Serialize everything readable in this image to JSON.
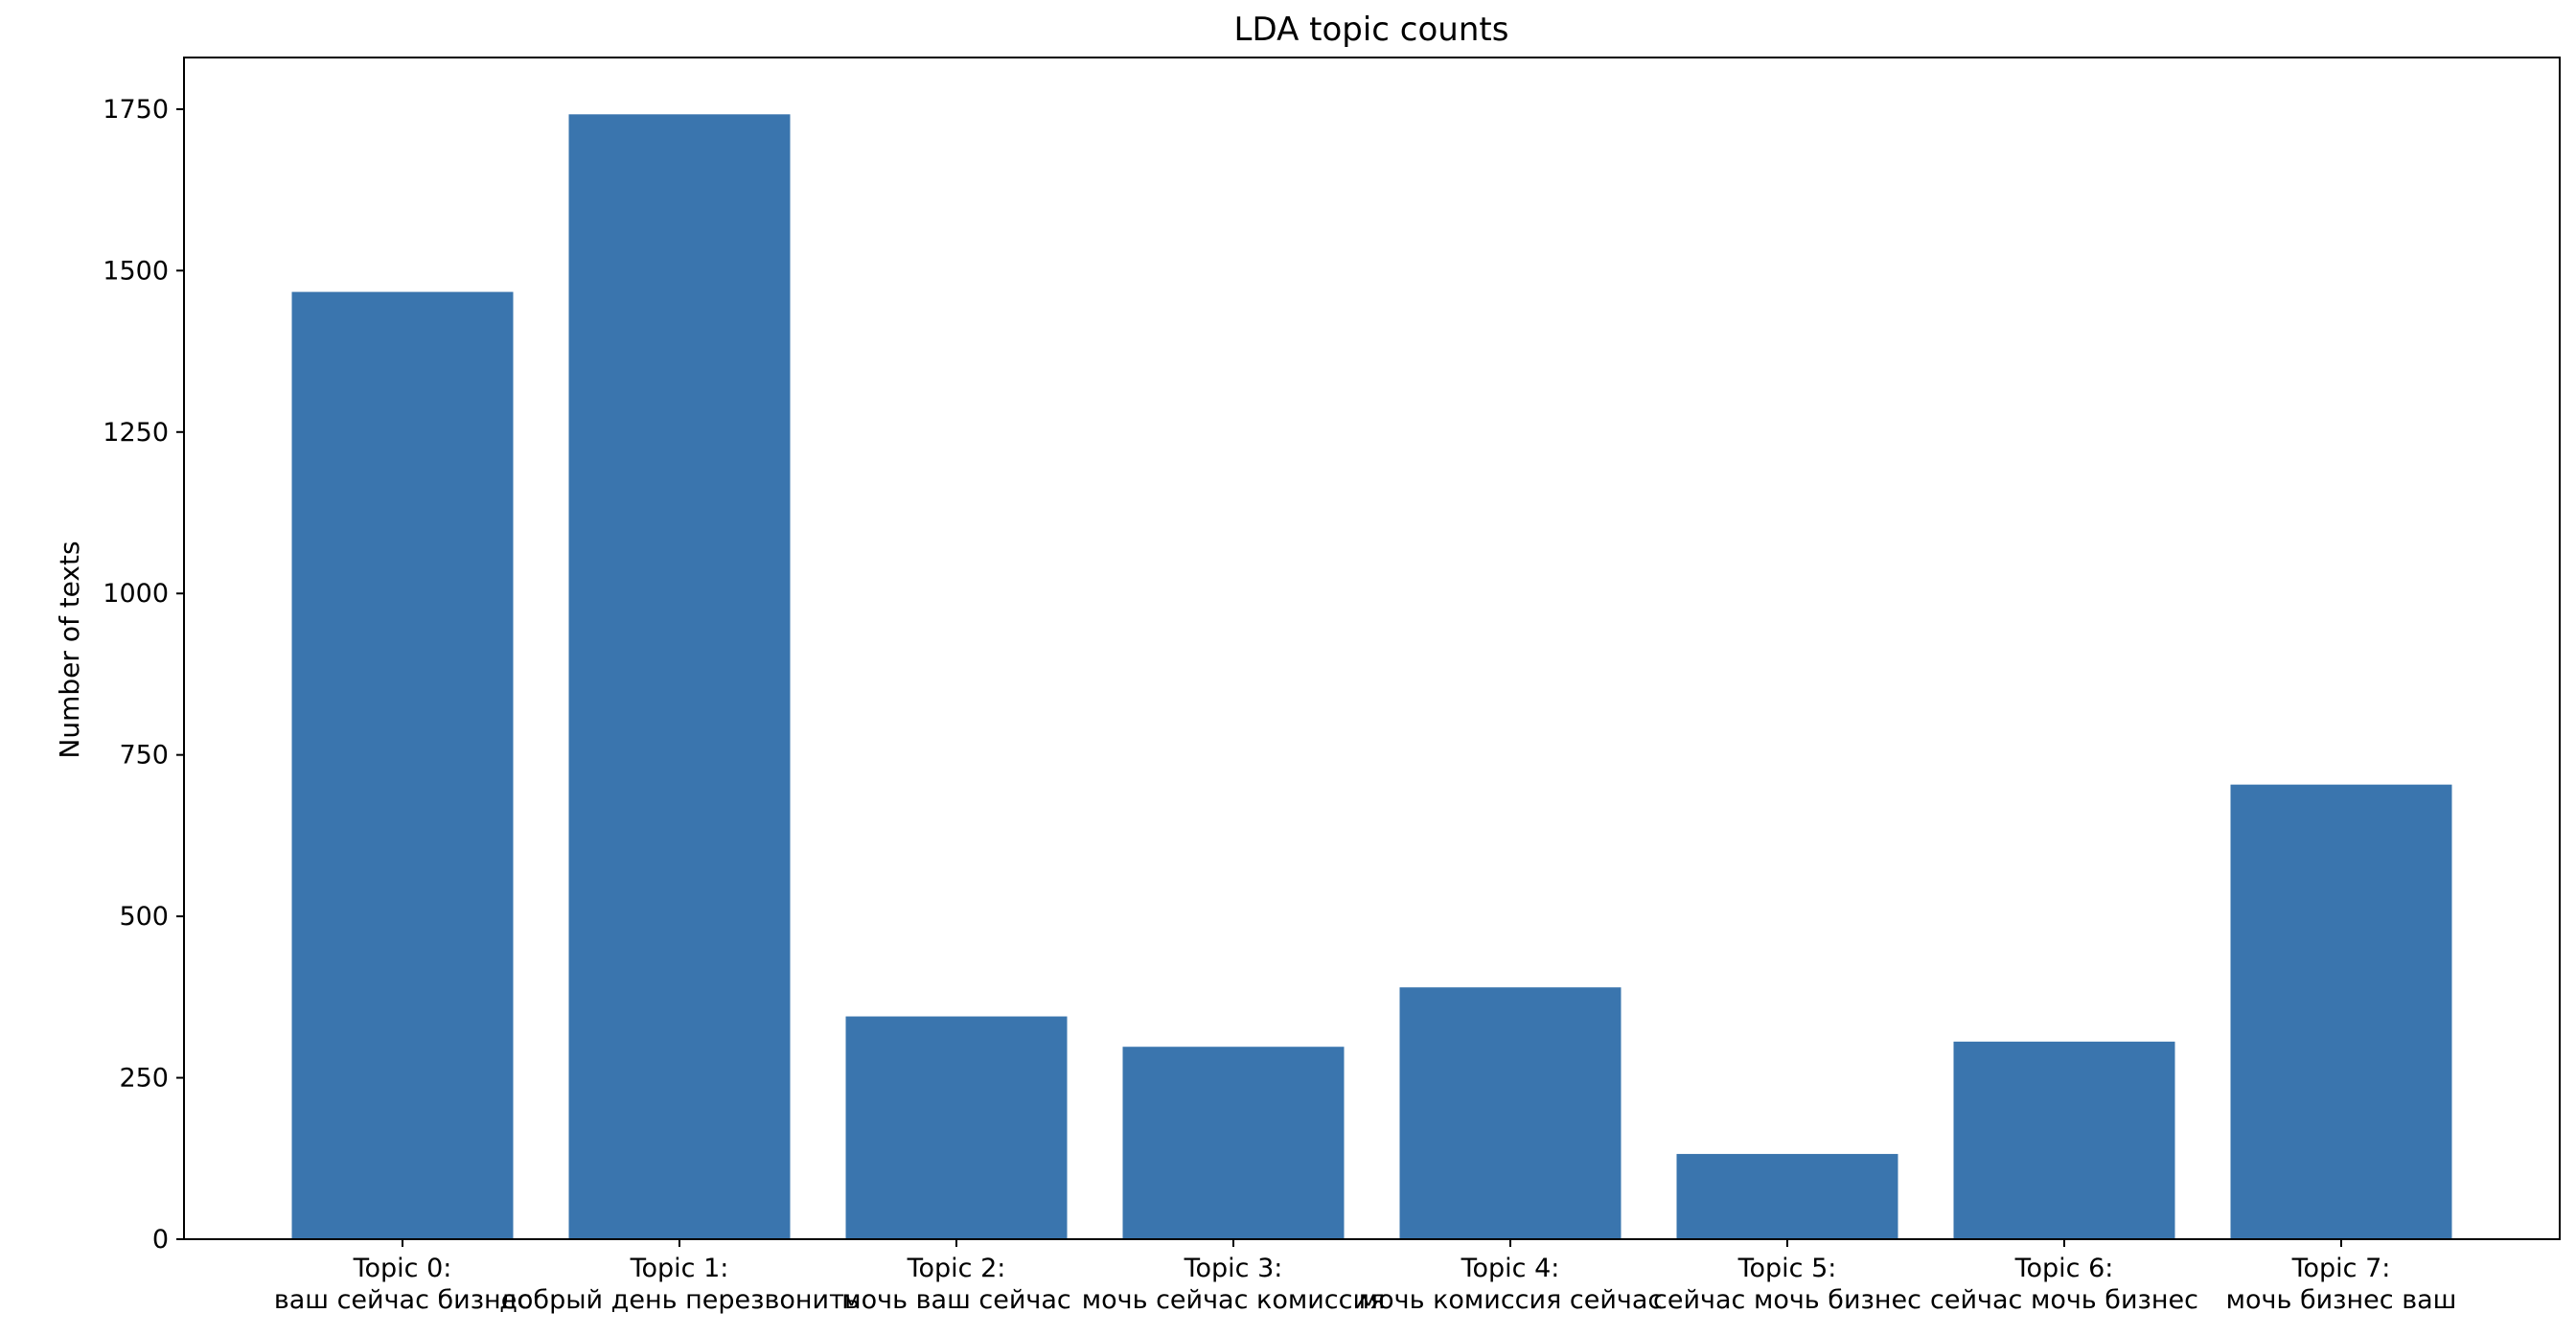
{
  "chart_data": {
    "type": "bar",
    "title": "LDA topic counts",
    "xlabel": "",
    "ylabel": "Number of texts",
    "ylim": [
      0,
      1830
    ],
    "yticks": [
      0,
      250,
      500,
      750,
      1000,
      1250,
      1500,
      1750
    ],
    "grid": false,
    "categories": [
      {
        "line1": "Topic 0:",
        "line2": "ваш сейчас бизнес"
      },
      {
        "line1": "Topic 1:",
        "line2": "добрый день перезвонить"
      },
      {
        "line1": "Topic 2:",
        "line2": "мочь ваш сейчас"
      },
      {
        "line1": "Topic 3:",
        "line2": "мочь сейчас комиссия"
      },
      {
        "line1": "Topic 4:",
        "line2": "мочь комиссия сейчас"
      },
      {
        "line1": "Topic 5:",
        "line2": "сейчас мочь бизнес"
      },
      {
        "line1": "Topic 6:",
        "line2": "сейчас мочь бизнес"
      },
      {
        "line1": "Topic 7:",
        "line2": "мочь бизнес ваш"
      }
    ],
    "values": [
      1467,
      1742,
      345,
      298,
      390,
      132,
      306,
      704
    ],
    "bar_color": "#3a75ae"
  }
}
